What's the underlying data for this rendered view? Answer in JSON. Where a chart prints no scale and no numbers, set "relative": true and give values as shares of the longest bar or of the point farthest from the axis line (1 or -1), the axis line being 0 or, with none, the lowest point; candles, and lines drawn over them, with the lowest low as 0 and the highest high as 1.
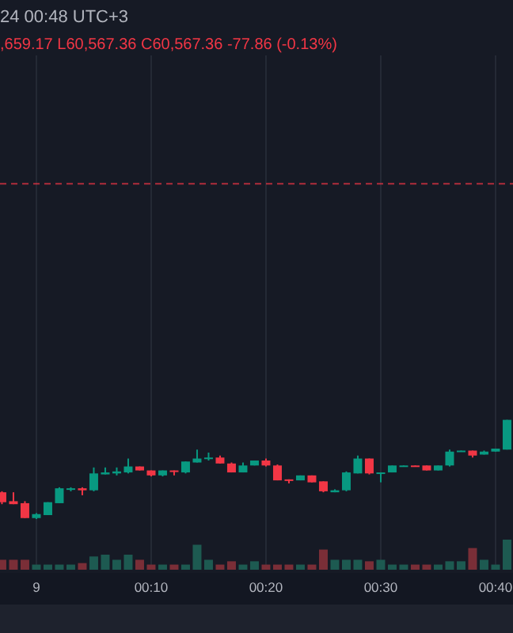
{
  "chart_data": [
    {
      "type": "candlestick",
      "title": "24 00:48 UTC+3",
      "subtitle": ",659.17 L60,567.36 C60,567.36 -77.86 (-0.13%)",
      "relative": true,
      "grid": "x",
      "tick_labels": false,
      "categories": [
        null,
        null,
        null,
        null,
        null,
        null,
        null,
        null,
        null,
        null,
        null,
        null,
        null,
        null,
        null,
        null,
        null,
        null,
        null,
        null,
        null,
        null,
        null,
        null,
        null,
        null,
        null,
        null,
        null,
        null,
        null,
        null,
        null,
        null,
        null,
        null,
        null,
        null,
        null,
        null,
        null,
        null,
        null,
        null,
        null
      ],
      "ohlc": [
        [
          0.27,
          0.28,
          0.15,
          0.17
        ],
        [
          0.18,
          0.27,
          0.15,
          0.15
        ],
        [
          0.16,
          0.18,
          0.01,
          0.01
        ],
        [
          0.01,
          0.06,
          0,
          0.05
        ],
        [
          0.04,
          0.17,
          0.04,
          0.17
        ],
        [
          0.16,
          0.32,
          0.16,
          0.31
        ],
        [
          0.3,
          0.32,
          0.28,
          0.31
        ],
        [
          0.31,
          0.32,
          0.24,
          0.29
        ],
        [
          0.29,
          0.52,
          0.28,
          0.46
        ],
        [
          0.45,
          0.52,
          0.45,
          0.47
        ],
        [
          0.46,
          0.52,
          0.44,
          0.48
        ],
        [
          0.47,
          0.61,
          0.46,
          0.53
        ],
        [
          0.53,
          0.53,
          0.49,
          0.49
        ],
        [
          0.49,
          0.49,
          0.43,
          0.44
        ],
        [
          0.44,
          0.49,
          0.43,
          0.49
        ],
        [
          0.49,
          0.49,
          0.44,
          0.48
        ],
        [
          0.47,
          0.58,
          0.46,
          0.58
        ],
        [
          0.57,
          0.7,
          0.57,
          0.61
        ],
        [
          0.61,
          0.67,
          0.59,
          0.62
        ],
        [
          0.62,
          0.64,
          0.56,
          0.56
        ],
        [
          0.56,
          0.57,
          0.47,
          0.47
        ],
        [
          0.47,
          0.57,
          0.47,
          0.54
        ],
        [
          0.54,
          0.59,
          0.54,
          0.59
        ],
        [
          0.59,
          0.61,
          0.53,
          0.54
        ],
        [
          0.54,
          0.55,
          0.39,
          0.39
        ],
        [
          0.4,
          0.4,
          0.36,
          0.39
        ],
        [
          0.39,
          0.44,
          0.39,
          0.44
        ],
        [
          0.44,
          0.44,
          0.37,
          0.37
        ],
        [
          0.38,
          0.38,
          0.27,
          0.28
        ],
        [
          0.27,
          0.3,
          0.27,
          0.29
        ],
        [
          0.29,
          0.48,
          0.28,
          0.47
        ],
        [
          0.46,
          0.64,
          0.46,
          0.61
        ],
        [
          0.61,
          0.61,
          0.45,
          0.46
        ],
        [
          0.46,
          0.47,
          0.37,
          0.47
        ],
        [
          0.47,
          0.54,
          0.47,
          0.54
        ],
        [
          0.53,
          0.54,
          0.53,
          0.54
        ],
        [
          0.54,
          0.54,
          0.53,
          0.53
        ],
        [
          0.54,
          0.54,
          0.49,
          0.49
        ],
        [
          0.49,
          0.54,
          0.49,
          0.54
        ],
        [
          0.54,
          0.7,
          0.53,
          0.68
        ],
        [
          0.68,
          0.69,
          0.68,
          0.69
        ],
        [
          0.69,
          0.69,
          0.62,
          0.64
        ],
        [
          0.65,
          0.69,
          0.65,
          0.68
        ],
        [
          0.68,
          0.71,
          0.68,
          0.71
        ],
        [
          0.7,
          1,
          0.7,
          1
        ]
      ],
      "colors": [
        "#f23645",
        "#f23645",
        "#f23645",
        "#089981",
        "#089981",
        "#089981",
        "#089981",
        "#f23645",
        "#089981",
        "#089981",
        "#089981",
        "#089981",
        "#f23645",
        "#f23645",
        "#089981",
        "#f23645",
        "#089981",
        "#089981",
        "#089981",
        "#f23645",
        "#f23645",
        "#089981",
        "#089981",
        "#f23645",
        "#f23645",
        "#f23645",
        "#089981",
        "#f23645",
        "#f23645",
        "#089981",
        "#089981",
        "#089981",
        "#f23645",
        "#089981",
        "#089981",
        "#089981",
        "#f23645",
        "#f23645",
        "#089981",
        "#089981",
        "#089981",
        "#f23645",
        "#089981",
        "#089981",
        "#089981"
      ],
      "ref_lines": [
        {
          "axis": "y",
          "value": 3.38,
          "color": "#f23645",
          "line_style": "dashed"
        }
      ]
    },
    {
      "type": "bar",
      "relative": true,
      "grid": "x",
      "categories": [
        null,
        null,
        null,
        "9",
        null,
        null,
        null,
        null,
        null,
        null,
        null,
        null,
        null,
        "00:10",
        null,
        null,
        null,
        null,
        null,
        null,
        null,
        null,
        null,
        "00:20",
        null,
        null,
        null,
        null,
        null,
        null,
        null,
        null,
        null,
        "00:30",
        null,
        null,
        null,
        null,
        null,
        null,
        null,
        null,
        null,
        "00:40",
        null
      ],
      "values": [
        0.33,
        0.33,
        0.33,
        0.17,
        0.17,
        0.17,
        0.17,
        0.22,
        0.44,
        0.5,
        0.33,
        0.5,
        0.33,
        0.17,
        0.17,
        0.17,
        0.17,
        0.83,
        0.33,
        0.17,
        0.28,
        0.17,
        0.28,
        0.17,
        0.17,
        0.17,
        0.17,
        0.17,
        0.67,
        0.33,
        0.33,
        0.33,
        0.28,
        0.33,
        0.17,
        0.17,
        0.17,
        0.17,
        0.17,
        0.28,
        0.28,
        0.72,
        0.33,
        0.17,
        1
      ],
      "colors": [
        "#7a2e37",
        "#7a2e37",
        "#7a2e37",
        "#1d5a51",
        "#1d5a51",
        "#1d5a51",
        "#1d5a51",
        "#7a2e37",
        "#1d5a51",
        "#1d5a51",
        "#1d5a51",
        "#1d5a51",
        "#7a2e37",
        "#7a2e37",
        "#1d5a51",
        "#7a2e37",
        "#1d5a51",
        "#1d5a51",
        "#1d5a51",
        "#7a2e37",
        "#7a2e37",
        "#1d5a51",
        "#1d5a51",
        "#7a2e37",
        "#7a2e37",
        "#7a2e37",
        "#1d5a51",
        "#7a2e37",
        "#7a2e37",
        "#1d5a51",
        "#1d5a51",
        "#1d5a51",
        "#7a2e37",
        "#1d5a51",
        "#1d5a51",
        "#1d5a51",
        "#7a2e37",
        "#7a2e37",
        "#1d5a51",
        "#1d5a51",
        "#1d5a51",
        "#7a2e37",
        "#1d5a51",
        "#1d5a51",
        "#1d5a51"
      ]
    }
  ]
}
